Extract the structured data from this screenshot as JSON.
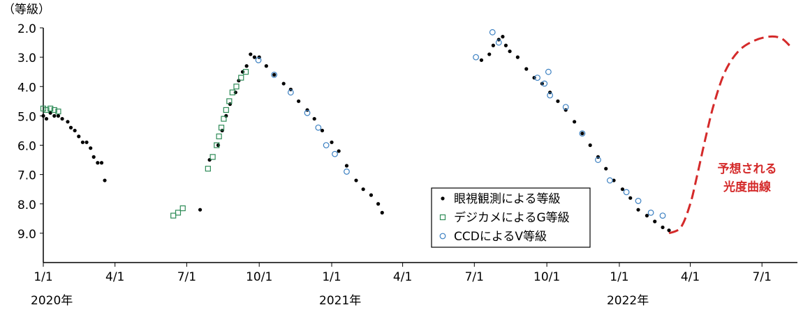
{
  "chart_data": {
    "type": "scatter",
    "y_label": "（等級）",
    "y_inverted": true,
    "ylim": [
      10,
      2
    ],
    "yticks": [
      {
        "value": 2,
        "label": "2.0"
      },
      {
        "value": 3,
        "label": "3.0"
      },
      {
        "value": 4,
        "label": "4.0"
      },
      {
        "value": 5,
        "label": "5.0"
      },
      {
        "value": 6,
        "label": "6.0"
      },
      {
        "value": 7,
        "label": "7.0"
      },
      {
        "value": 8,
        "label": "8.0"
      },
      {
        "value": 9,
        "label": "9.0"
      }
    ],
    "xlim": [
      "2020-01-01",
      "2022-08-15"
    ],
    "xticks": [
      {
        "value": "2020-01-01",
        "label": "1/1"
      },
      {
        "value": "2020-04-01",
        "label": "4/1"
      },
      {
        "value": "2020-07-01",
        "label": "7/1"
      },
      {
        "value": "2020-10-01",
        "label": "10/1"
      },
      {
        "value": "2021-01-01",
        "label": "1/1"
      },
      {
        "value": "2021-04-01",
        "label": "4/1"
      },
      {
        "value": "2021-07-01",
        "label": "7/1"
      },
      {
        "value": "2021-10-01",
        "label": "10/1"
      },
      {
        "value": "2022-01-01",
        "label": "1/1"
      },
      {
        "value": "2022-04-01",
        "label": "4/1"
      },
      {
        "value": "2022-07-01",
        "label": "7/1"
      }
    ],
    "year_labels": [
      {
        "value": "2020-01-01",
        "label": "2020年"
      },
      {
        "value": "2021-01-01",
        "label": "2021年"
      },
      {
        "value": "2022-01-01",
        "label": "2022年"
      }
    ],
    "series": [
      {
        "name": "眼視観測による等級",
        "color": "#000000",
        "marker": "dot",
        "x": [
          "2020-01-01",
          "2020-01-05",
          "2020-01-10",
          "2020-01-15",
          "2020-01-20",
          "2020-01-25",
          "2020-02-01",
          "2020-02-05",
          "2020-02-10",
          "2020-02-15",
          "2020-02-20",
          "2020-02-25",
          "2020-03-01",
          "2020-03-05",
          "2020-03-10",
          "2020-03-15",
          "2020-03-19",
          "2020-07-18",
          "2020-07-30",
          "2020-08-10",
          "2020-08-15",
          "2020-08-20",
          "2020-08-25",
          "2020-09-01",
          "2020-09-05",
          "2020-09-10",
          "2020-09-15",
          "2020-09-20",
          "2020-09-25",
          "2020-10-01",
          "2020-10-10",
          "2020-10-20",
          "2020-11-01",
          "2020-11-10",
          "2020-11-20",
          "2020-12-01",
          "2020-12-10",
          "2020-12-20",
          "2021-01-01",
          "2021-01-10",
          "2021-01-20",
          "2021-02-01",
          "2021-02-10",
          "2021-02-20",
          "2021-03-01",
          "2021-03-06",
          "2021-07-10",
          "2021-07-20",
          "2021-07-25",
          "2021-08-01",
          "2021-08-06",
          "2021-08-10",
          "2021-08-15",
          "2021-08-25",
          "2021-09-05",
          "2021-09-15",
          "2021-09-25",
          "2021-10-05",
          "2021-10-15",
          "2021-10-25",
          "2021-11-05",
          "2021-11-15",
          "2021-11-25",
          "2021-12-05",
          "2021-12-15",
          "2021-12-25",
          "2022-01-05",
          "2022-01-15",
          "2022-01-25",
          "2022-02-05",
          "2022-02-15",
          "2022-02-25",
          "2022-03-05"
        ],
        "values": [
          5.0,
          5.1,
          4.9,
          5.0,
          5.0,
          5.1,
          5.2,
          5.4,
          5.5,
          5.7,
          5.9,
          5.9,
          6.1,
          6.4,
          6.6,
          6.6,
          7.2,
          8.2,
          6.5,
          6.0,
          5.5,
          5.0,
          4.6,
          4.2,
          3.8,
          3.5,
          3.3,
          2.9,
          3.0,
          3.0,
          3.3,
          3.6,
          3.9,
          4.1,
          4.5,
          4.8,
          5.1,
          5.5,
          5.9,
          6.2,
          6.7,
          7.2,
          7.5,
          7.7,
          8.0,
          8.3,
          3.1,
          2.9,
          2.6,
          2.4,
          2.3,
          2.6,
          2.8,
          3.0,
          3.4,
          3.7,
          3.9,
          4.2,
          4.5,
          4.8,
          5.2,
          5.6,
          6.0,
          6.4,
          6.8,
          7.2,
          7.5,
          7.8,
          8.2,
          8.4,
          8.6,
          8.8,
          8.9
        ]
      },
      {
        "name": "デジカメによるG等級",
        "color": "#2e8b57",
        "marker": "square",
        "x": [
          "2020-01-01",
          "2020-01-05",
          "2020-01-10",
          "2020-01-15",
          "2020-01-20",
          "2020-06-14",
          "2020-06-20",
          "2020-06-26",
          "2020-07-28",
          "2020-08-03",
          "2020-08-08",
          "2020-08-11",
          "2020-08-14",
          "2020-08-17",
          "2020-08-20",
          "2020-08-24",
          "2020-08-28",
          "2020-09-02",
          "2020-09-08",
          "2020-09-14"
        ],
        "values": [
          4.75,
          4.8,
          4.75,
          4.8,
          4.85,
          8.4,
          8.3,
          8.15,
          6.8,
          6.4,
          6.0,
          5.7,
          5.4,
          5.1,
          4.8,
          4.5,
          4.2,
          4.0,
          3.7,
          3.5
        ]
      },
      {
        "name": "CCDによるV等級",
        "color": "#3a7fc1",
        "marker": "circle",
        "x": [
          "2020-09-30",
          "2020-10-20",
          "2020-11-10",
          "2020-12-01",
          "2020-12-15",
          "2020-12-25",
          "2021-01-05",
          "2021-01-20",
          "2021-07-03",
          "2021-07-24",
          "2021-08-01",
          "2021-09-19",
          "2021-09-28",
          "2021-10-03",
          "2021-10-05",
          "2021-10-25",
          "2021-11-15",
          "2021-12-05",
          "2021-12-20",
          "2022-01-10",
          "2022-01-25",
          "2022-02-10",
          "2022-02-25"
        ],
        "values": [
          3.1,
          3.6,
          4.2,
          4.9,
          5.4,
          6.0,
          6.3,
          6.9,
          3.0,
          2.15,
          2.5,
          3.7,
          3.9,
          3.5,
          4.3,
          4.7,
          5.6,
          6.5,
          7.2,
          7.6,
          7.9,
          8.3,
          8.4
        ]
      }
    ],
    "prediction": {
      "color": "#d42a2a",
      "x": [
        "2022-03-05",
        "2022-03-20",
        "2022-04-01",
        "2022-04-10",
        "2022-04-20",
        "2022-05-01",
        "2022-05-15",
        "2022-06-01",
        "2022-06-20",
        "2022-07-10",
        "2022-07-25",
        "2022-08-05"
      ],
      "values": [
        9.0,
        8.8,
        8.0,
        7.0,
        5.8,
        4.6,
        3.5,
        2.8,
        2.45,
        2.3,
        2.35,
        2.6
      ]
    },
    "annotation": [
      "予想される",
      "光度曲線"
    ]
  }
}
